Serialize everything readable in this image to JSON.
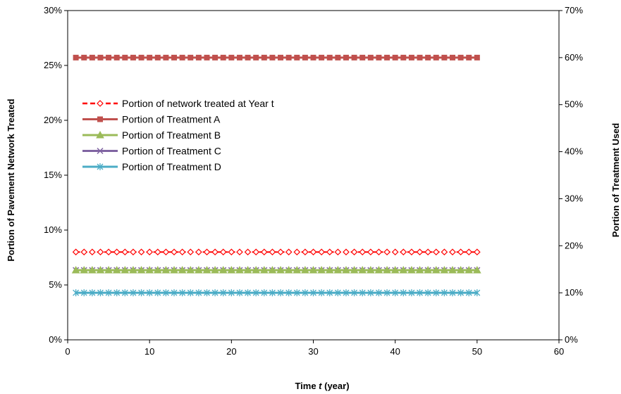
{
  "chart_data": {
    "type": "line",
    "x_axis": {
      "label_prefix": "Time ",
      "label_var": "t",
      "label_suffix": " (year)",
      "min": 0,
      "max": 60,
      "ticks": [
        0,
        10,
        20,
        30,
        40,
        50,
        60
      ]
    },
    "y_left": {
      "label": "Portion of Pavement Network Treated",
      "min": 0,
      "max": 30,
      "ticks": [
        0,
        5,
        10,
        15,
        20,
        25,
        30
      ],
      "tick_labels": [
        "0%",
        "5%",
        "10%",
        "15%",
        "20%",
        "25%",
        "30%"
      ]
    },
    "y_right": {
      "label": "Portion of Treatment Used",
      "min": 0,
      "max": 70,
      "ticks": [
        0,
        10,
        20,
        30,
        40,
        50,
        60,
        70
      ],
      "tick_labels": [
        "0%",
        "10%",
        "20%",
        "30%",
        "40%",
        "50%",
        "60%",
        "70%"
      ]
    },
    "grid": false,
    "legend_position": "left",
    "x_start": 1,
    "x_end": 50,
    "series": [
      {
        "name": "Portion of network treated at Year t",
        "axis": "left",
        "value": 8,
        "color": "#ff0000",
        "marker": "diamond",
        "dashed": true
      },
      {
        "name": "Portion of Treatment A",
        "axis": "right",
        "value": 60,
        "color": "#c0504d",
        "marker": "square",
        "dashed": false
      },
      {
        "name": "Portion of Treatment B",
        "axis": "right",
        "value": 14.8,
        "color": "#9bbb59",
        "marker": "triangle",
        "dashed": false
      },
      {
        "name": "Portion of Treatment C",
        "axis": "right",
        "value": 14.8,
        "color": "#8064a2",
        "marker": "x",
        "dashed": false
      },
      {
        "name": "Portion of Treatment D",
        "axis": "right",
        "value": 10,
        "color": "#4bacc6",
        "marker": "asterisk",
        "dashed": false
      }
    ]
  }
}
